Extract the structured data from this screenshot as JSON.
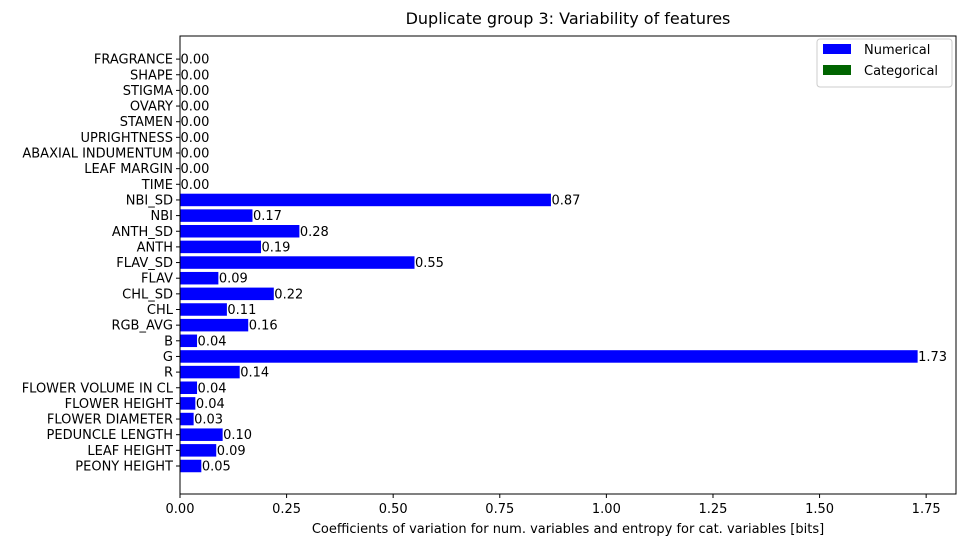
{
  "chart_data": {
    "type": "bar",
    "orientation": "horizontal",
    "title": "Duplicate group 3: Variability of features",
    "xlabel": "Coefficients of variation for num. variables and entropy for cat. variables [bits]",
    "ylabel": "",
    "xlim": [
      0,
      1.82
    ],
    "xticks": [
      "0.00",
      "0.25",
      "0.50",
      "0.75",
      "1.00",
      "1.25",
      "1.50",
      "1.75"
    ],
    "xtick_values": [
      0,
      0.25,
      0.5,
      0.75,
      1.0,
      1.25,
      1.5,
      1.75
    ],
    "grid": false,
    "legend_position": "top-right",
    "legend": [
      {
        "name": "Numerical",
        "color": "#0000ff"
      },
      {
        "name": "Categorical",
        "color": "#006400"
      }
    ],
    "categories": [
      "PEONY HEIGHT",
      "LEAF HEIGHT",
      "PEDUNCLE LENGTH",
      "FLOWER DIAMETER",
      "FLOWER HEIGHT",
      "FLOWER VOLUME IN CL",
      "R",
      "G",
      "B",
      "RGB_AVG",
      "CHL",
      "CHL_SD",
      "FLAV",
      "FLAV_SD",
      "ANTH",
      "ANTH_SD",
      "NBI",
      "NBI_SD",
      "TIME",
      "LEAF MARGIN",
      "ABAXIAL INDUMENTUM",
      "UPRIGHTNESS",
      "STAMEN",
      "OVARY",
      "STIGMA",
      "SHAPE",
      "FRAGRANCE"
    ],
    "values": [
      0.05,
      0.085,
      0.1,
      0.032,
      0.036,
      0.04,
      0.14,
      1.73,
      0.04,
      0.16,
      0.11,
      0.22,
      0.09,
      0.55,
      0.19,
      0.28,
      0.17,
      0.87,
      0,
      0,
      0,
      0,
      0,
      0,
      0,
      0,
      0
    ],
    "value_labels": [
      "0.05",
      "0.09",
      "0.10",
      "0.03",
      "0.04",
      "0.04",
      "0.14",
      "1.73",
      "0.04",
      "0.16",
      "0.11",
      "0.22",
      "0.09",
      "0.55",
      "0.19",
      "0.28",
      "0.17",
      "0.87",
      "0.00",
      "0.00",
      "0.00",
      "0.00",
      "0.00",
      "0.00",
      "0.00",
      "0.00",
      "0.00"
    ],
    "bar_types": [
      "Numerical",
      "Numerical",
      "Numerical",
      "Numerical",
      "Numerical",
      "Numerical",
      "Numerical",
      "Numerical",
      "Numerical",
      "Numerical",
      "Numerical",
      "Numerical",
      "Numerical",
      "Numerical",
      "Numerical",
      "Numerical",
      "Numerical",
      "Numerical",
      "Numerical",
      "Categorical",
      "Categorical",
      "Categorical",
      "Categorical",
      "Categorical",
      "Categorical",
      "Categorical",
      "Categorical"
    ]
  }
}
